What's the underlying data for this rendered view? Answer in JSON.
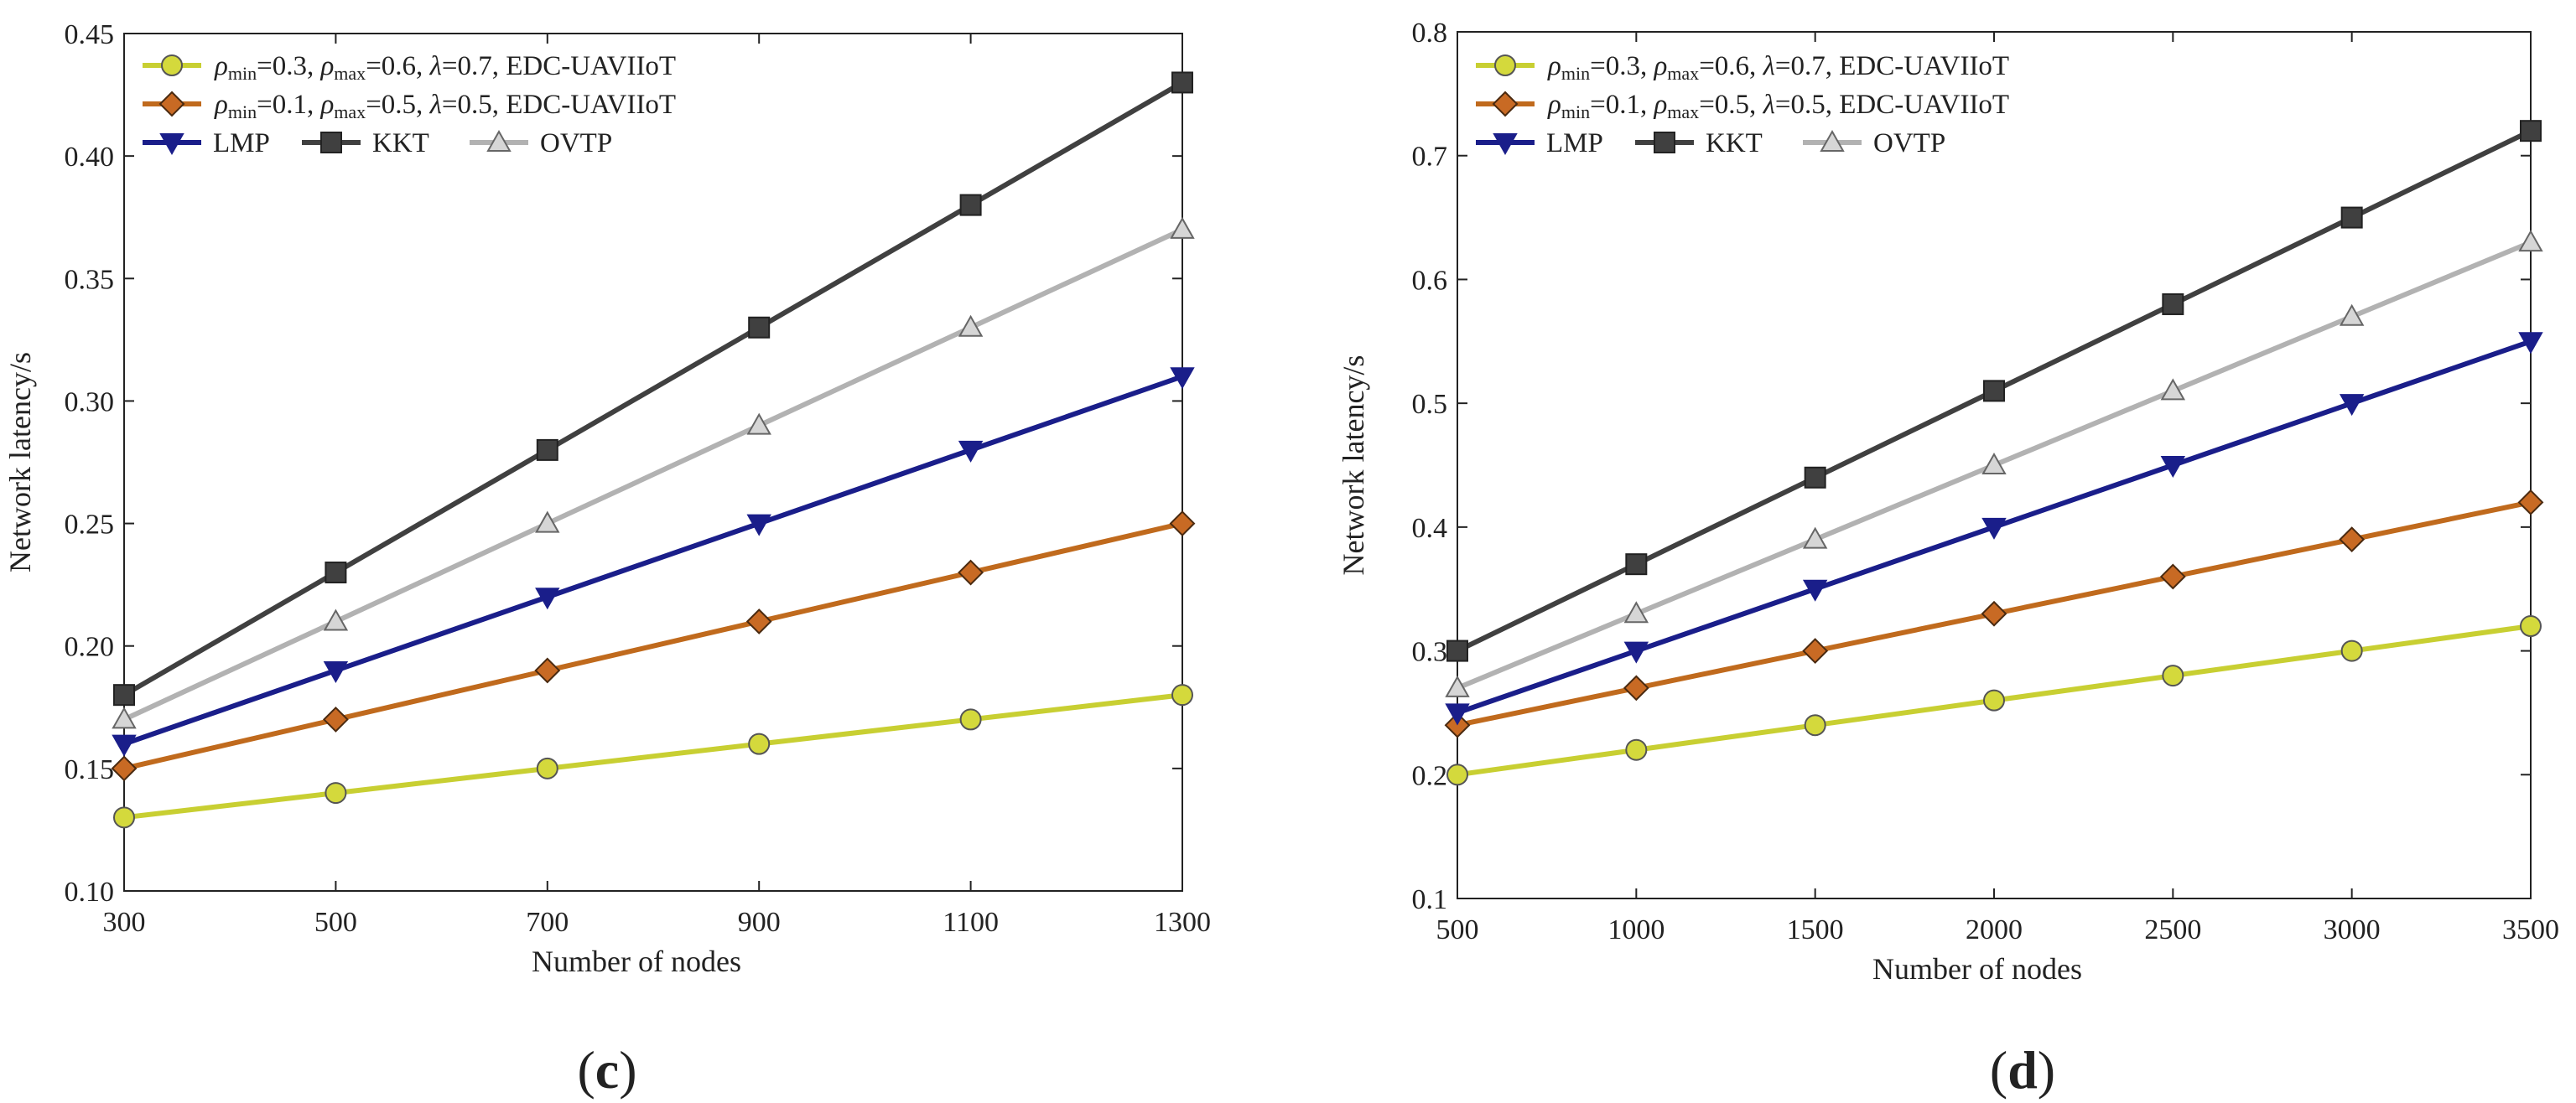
{
  "colors": {
    "edc_a": "#c8cf32",
    "edc_a_marker": "#d4d93c",
    "edc_b": "#c06a1d",
    "edc_b_marker": "#c86a24",
    "lmp": "#1a1e8a",
    "kkt": "#404040",
    "ovtp": "#b2b2b2",
    "ovtp_marker": "#d6d6d6"
  },
  "chart_data": [
    {
      "type": "line",
      "panel_label": "c",
      "title": "",
      "xlabel": "Number of nodes",
      "ylabel": "Network latency/s",
      "x": [
        300,
        500,
        700,
        900,
        1100,
        1300
      ],
      "xlim": [
        300,
        1300
      ],
      "ylim": [
        0.1,
        0.45
      ],
      "xticks": [
        "300",
        "500",
        "700",
        "900",
        "1100",
        "1300"
      ],
      "yticks": [
        "0.10",
        "0.15",
        "0.20",
        "0.25",
        "0.30",
        "0.35",
        "0.40",
        "0.45"
      ],
      "ytick_values": [
        0.1,
        0.15,
        0.2,
        0.25,
        0.3,
        0.35,
        0.4,
        0.45
      ],
      "legend_position": "top-left",
      "series": [
        {
          "key": "edc_a",
          "name": "EDC-UAVIIoT",
          "rho_min": "0.3",
          "rho_max": "0.6",
          "lambda": "0.7",
          "marker": "circle",
          "values": [
            0.13,
            0.14,
            0.15,
            0.16,
            0.17,
            0.18
          ]
        },
        {
          "key": "edc_b",
          "name": "EDC-UAVIIoT",
          "rho_min": "0.1",
          "rho_max": "0.5",
          "lambda": "0.5",
          "marker": "diamond",
          "values": [
            0.15,
            0.17,
            0.19,
            0.21,
            0.23,
            0.25
          ]
        },
        {
          "key": "lmp",
          "name": "LMP",
          "marker": "triangle-down",
          "values": [
            0.16,
            0.19,
            0.22,
            0.25,
            0.28,
            0.31
          ]
        },
        {
          "key": "kkt",
          "name": "KKT",
          "marker": "square",
          "values": [
            0.18,
            0.23,
            0.28,
            0.33,
            0.38,
            0.43
          ]
        },
        {
          "key": "ovtp",
          "name": "OVTP",
          "marker": "triangle-up",
          "values": [
            0.17,
            0.21,
            0.25,
            0.29,
            0.33,
            0.37
          ]
        }
      ]
    },
    {
      "type": "line",
      "panel_label": "d",
      "title": "",
      "xlabel": "Number of nodes",
      "ylabel": "Network latency/s",
      "x": [
        500,
        1000,
        1500,
        2000,
        2500,
        3000,
        3500
      ],
      "xlim": [
        500,
        3500
      ],
      "ylim": [
        0.1,
        0.8
      ],
      "xticks": [
        "500",
        "1000",
        "1500",
        "2000",
        "2500",
        "3000",
        "3500"
      ],
      "yticks": [
        "0.1",
        "0.2",
        "0.3",
        "0.4",
        "0.5",
        "0.6",
        "0.7",
        "0.8"
      ],
      "ytick_values": [
        0.1,
        0.2,
        0.3,
        0.4,
        0.5,
        0.6,
        0.7,
        0.8
      ],
      "legend_position": "top-left",
      "series": [
        {
          "key": "edc_a",
          "name": "EDC-UAVIIoT",
          "rho_min": "0.3",
          "rho_max": "0.6",
          "lambda": "0.7",
          "marker": "circle",
          "values": [
            0.2,
            0.22,
            0.24,
            0.26,
            0.28,
            0.3,
            0.32
          ]
        },
        {
          "key": "edc_b",
          "name": "EDC-UAVIIoT",
          "rho_min": "0.1",
          "rho_max": "0.5",
          "lambda": "0.5",
          "marker": "diamond",
          "values": [
            0.24,
            0.27,
            0.3,
            0.33,
            0.36,
            0.39,
            0.42
          ]
        },
        {
          "key": "lmp",
          "name": "LMP",
          "marker": "triangle-down",
          "values": [
            0.25,
            0.3,
            0.35,
            0.4,
            0.45,
            0.5,
            0.55
          ]
        },
        {
          "key": "kkt",
          "name": "KKT",
          "marker": "square",
          "values": [
            0.3,
            0.37,
            0.44,
            0.51,
            0.58,
            0.65,
            0.72
          ]
        },
        {
          "key": "ovtp",
          "name": "OVTP",
          "marker": "triangle-up",
          "values": [
            0.27,
            0.33,
            0.39,
            0.45,
            0.51,
            0.57,
            0.63
          ]
        }
      ]
    }
  ]
}
